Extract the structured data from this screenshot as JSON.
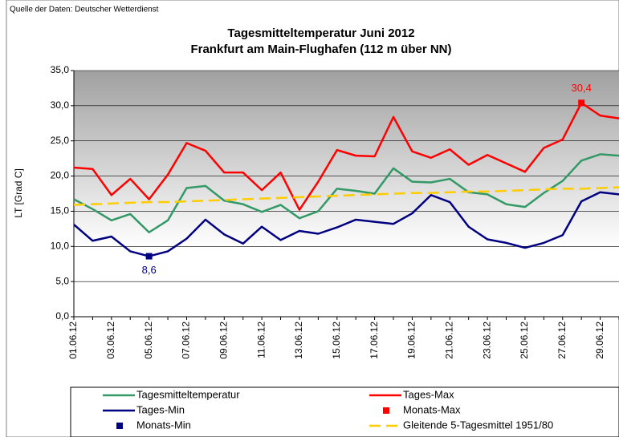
{
  "chart_data": {
    "type": "line",
    "source": "Quelle der Daten: Deutscher Wetterdienst",
    "title": "Tagesmitteltemperatur  Juni 2012",
    "subtitle": "Frankfurt am Main-Flughafen (112 m über NN)",
    "y_label": "LT [Grad C]",
    "categories": [
      "01.06.12",
      null,
      "03.06.12",
      null,
      "05.06.12",
      null,
      "07.06.12",
      null,
      "09.06.12",
      null,
      "11.06.12",
      null,
      "13.06.12",
      null,
      "15.06.12",
      null,
      "17.06.12",
      null,
      "19.06.12",
      null,
      "21.06.12",
      null,
      "23.06.12",
      null,
      "25.06.12",
      null,
      "27.06.12",
      null,
      "29.06.12",
      null
    ],
    "ylim": [
      0,
      35
    ],
    "yticks": [
      {
        "value": 0,
        "label": "0,0"
      },
      {
        "value": 5,
        "label": "5,0"
      },
      {
        "value": 10,
        "label": "10,0"
      },
      {
        "value": 15,
        "label": "15,0"
      },
      {
        "value": 20,
        "label": "20,0"
      },
      {
        "value": 25,
        "label": "25,0"
      },
      {
        "value": 30,
        "label": "30,0"
      },
      {
        "value": 35,
        "label": "35,0"
      }
    ],
    "grid": true,
    "series": [
      {
        "name": "Tagesmitteltemperatur",
        "color": "#339966",
        "mark": "line",
        "values": [
          16.7,
          15.3,
          13.7,
          14.6,
          12.0,
          13.7,
          18.3,
          18.6,
          16.5,
          16.0,
          14.9,
          15.9,
          14.0,
          15.0,
          18.2,
          17.9,
          17.5,
          21.1,
          19.2,
          19.1,
          19.6,
          17.7,
          17.4,
          16.0,
          15.6,
          17.6,
          19.3,
          22.2,
          23.1,
          22.9
        ]
      },
      {
        "name": "Tages-Max",
        "color": "#ff0000",
        "mark": "line",
        "values": [
          21.2,
          21.0,
          17.3,
          19.6,
          16.7,
          20.2,
          24.7,
          23.6,
          20.5,
          20.5,
          18.0,
          20.5,
          15.2,
          19.2,
          23.7,
          22.9,
          22.8,
          28.4,
          23.5,
          22.6,
          23.8,
          21.6,
          23.0,
          21.8,
          20.6,
          24.0,
          25.2,
          30.4,
          28.6,
          28.2
        ]
      },
      {
        "name": "Tages-Min",
        "color": "#000080",
        "mark": "line",
        "values": [
          13.1,
          10.8,
          11.4,
          9.3,
          8.6,
          9.3,
          11.1,
          13.8,
          11.7,
          10.4,
          12.8,
          10.9,
          12.2,
          11.8,
          12.7,
          13.8,
          13.5,
          13.2,
          14.7,
          17.3,
          16.3,
          12.8,
          11.0,
          10.5,
          9.8,
          10.5,
          11.6,
          16.4,
          17.7,
          17.4
        ]
      },
      {
        "name": "Monats-Max",
        "color": "#ff0000",
        "mark": "marker",
        "values": [
          null,
          null,
          null,
          null,
          null,
          null,
          null,
          null,
          null,
          null,
          null,
          null,
          null,
          null,
          null,
          null,
          null,
          null,
          null,
          null,
          null,
          null,
          null,
          null,
          null,
          null,
          null,
          30.4,
          null,
          null
        ],
        "value_labels": [
          null,
          null,
          null,
          null,
          null,
          null,
          null,
          null,
          null,
          null,
          null,
          null,
          null,
          null,
          null,
          null,
          null,
          null,
          null,
          null,
          null,
          null,
          null,
          null,
          null,
          null,
          null,
          "30,4",
          null,
          null
        ]
      },
      {
        "name": "Monats-Min",
        "color": "#000080",
        "mark": "marker",
        "values": [
          null,
          null,
          null,
          null,
          8.6,
          null,
          null,
          null,
          null,
          null,
          null,
          null,
          null,
          null,
          null,
          null,
          null,
          null,
          null,
          null,
          null,
          null,
          null,
          null,
          null,
          null,
          null,
          null,
          null,
          null
        ],
        "value_labels": [
          null,
          null,
          null,
          null,
          "8,6",
          null,
          null,
          null,
          null,
          null,
          null,
          null,
          null,
          null,
          null,
          null,
          null,
          null,
          null,
          null,
          null,
          null,
          null,
          null,
          null,
          null,
          null,
          null,
          null,
          null
        ]
      },
      {
        "name": "Gleitende 5-Tagesmittel 1951/80",
        "color": "#ffcc00",
        "mark": "dashed",
        "values": [
          15.9,
          16.0,
          16.1,
          16.2,
          16.3,
          16.3,
          16.4,
          16.5,
          16.6,
          16.7,
          16.8,
          16.9,
          17.0,
          17.1,
          17.2,
          17.3,
          17.4,
          17.5,
          17.6,
          17.6,
          17.7,
          17.8,
          17.8,
          17.9,
          18.0,
          18.1,
          18.2,
          18.2,
          18.3,
          18.4
        ]
      }
    ]
  }
}
